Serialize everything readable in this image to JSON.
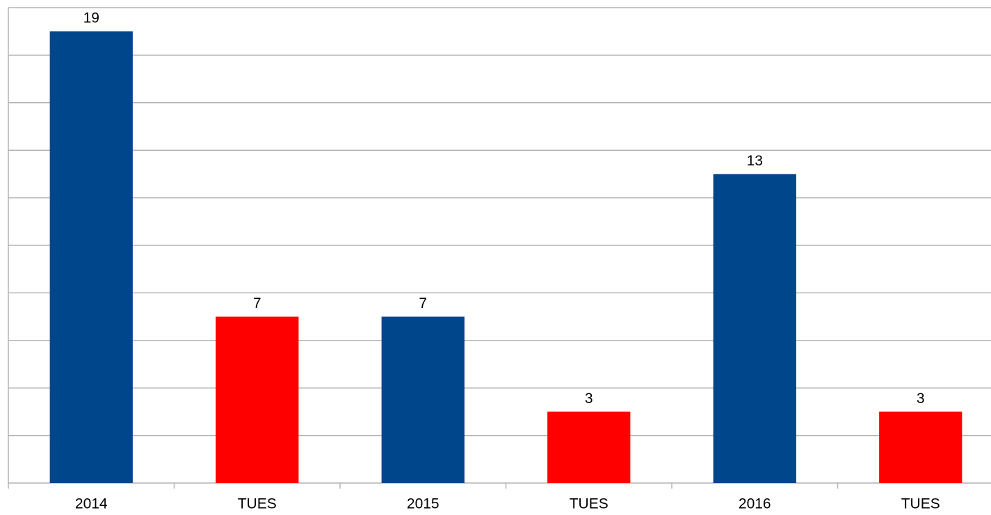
{
  "chart_data": {
    "type": "bar",
    "categories": [
      "2014",
      "TUES",
      "2015",
      "TUES",
      "2016",
      "TUES"
    ],
    "values": [
      19,
      7,
      7,
      3,
      13,
      3
    ],
    "colors": [
      "#00468b",
      "#ff0000",
      "#00468b",
      "#ff0000",
      "#00468b",
      "#ff0000"
    ],
    "ylim": [
      0,
      20
    ],
    "yticks": [
      0,
      2,
      4,
      6,
      8,
      10,
      12,
      14,
      16,
      18,
      20
    ],
    "grid": true
  }
}
